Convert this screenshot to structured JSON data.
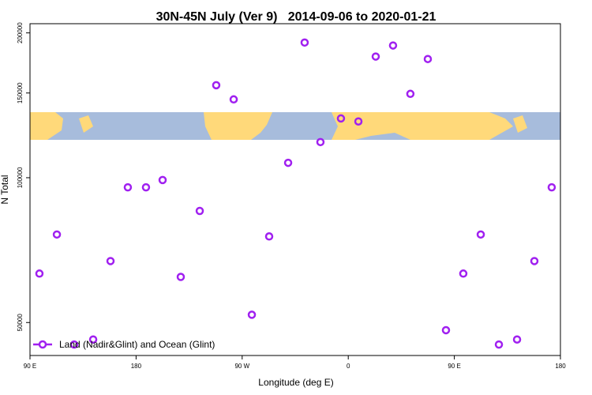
{
  "chart_data": {
    "type": "scatter",
    "title": "30N-45N July (Ver 9)   2014-09-06 to 2020-01-21",
    "x_label": "Longitude (deg E)",
    "y_label": "N Total",
    "log_y": true,
    "legend": "bottom-left",
    "xlim": [
      90,
      540
    ],
    "xticks": [
      {
        "value": 90,
        "label": "90 E"
      },
      180,
      {
        "value": 270,
        "label": "90 W"
      },
      {
        "value": 360,
        "label": "0"
      },
      {
        "value": 450,
        "label": "90 E"
      },
      {
        "value": 540,
        "label": "180"
      }
    ],
    "ylim": [
      42700,
      209000
    ],
    "yticks": [
      50000,
      100000,
      150000,
      200000
    ],
    "series": [
      {
        "name": "Land (Nadir&Glint) and Ocean (Glint)",
        "color": "#a020f0",
        "x": [
          98.0,
          112.8,
          127.5,
          143.6,
          158.3,
          173.0,
          188.4,
          202.5,
          217.9,
          234.0,
          248.0,
          262.8,
          278.2,
          292.9,
          309.0,
          323.0,
          336.4,
          353.8,
          368.6,
          383.3,
          398.0,
          412.7,
          427.5,
          442.9,
          457.6,
          472.4,
          487.8,
          503.2,
          517.9,
          532.6
        ],
        "values": [
          63200,
          76200,
          45000,
          46100,
          67100,
          95500,
          95500,
          98900,
          62200,
          85300,
          155700,
          145500,
          51900,
          75500,
          107400,
          191000,
          118600,
          132800,
          130900,
          178600,
          188300,
          149400,
          176500,
          48200,
          63200,
          76200,
          45000,
          46100,
          67100,
          95500
        ]
      }
    ]
  }
}
